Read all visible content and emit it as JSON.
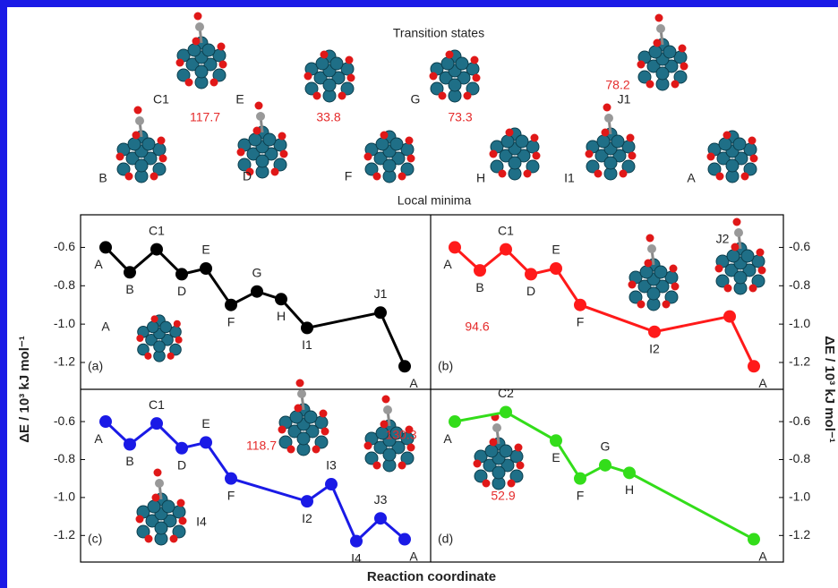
{
  "header": {
    "title": "Transition states",
    "subtitle": "Local minima",
    "transition_states": [
      {
        "label": "C1",
        "energy": "117.7"
      },
      {
        "label": "E",
        "energy": "33.8"
      },
      {
        "label": "G",
        "energy": "73.3"
      },
      {
        "label": "J1",
        "energy": "78.2"
      }
    ],
    "local_minima": [
      "B",
      "D",
      "F",
      "H",
      "I1",
      "A"
    ]
  },
  "figure": {
    "ylabel": "ΔE / 10³ kJ mol⁻¹",
    "xlabel": "Reaction coordinate"
  },
  "chart_data": [
    {
      "type": "line",
      "panel": "(a)",
      "color": "#000000",
      "categories": [
        "A",
        "B",
        "C1",
        "D",
        "E",
        "F",
        "G",
        "H",
        "I1",
        "J1",
        "A"
      ],
      "values": [
        -0.6,
        -0.73,
        -0.61,
        -0.74,
        -0.71,
        -0.9,
        -0.83,
        -0.87,
        -1.02,
        -0.94,
        -1.22
      ],
      "ylim": [
        -1.34,
        -0.43
      ],
      "yticks": [
        -0.6,
        -0.8,
        {
          "value": -1,
          "label": "-1.0"
        },
        -1.2
      ],
      "annotations": [
        "A"
      ]
    },
    {
      "type": "line",
      "panel": "(b)",
      "color": "#ff1a1a",
      "categories": [
        "A",
        "B",
        "C1",
        "D",
        "E",
        "F",
        "I2",
        null,
        "A"
      ],
      "values": [
        -0.6,
        -0.72,
        -0.61,
        -0.74,
        -0.71,
        -0.9,
        -1.04,
        -0.96,
        -1.22
      ],
      "ylim": [
        -1.34,
        -0.43
      ],
      "yticks": [
        -0.6,
        -0.8,
        {
          "value": -1,
          "label": "-1.0"
        },
        -1.2
      ],
      "annotations": [
        "J2",
        "94.6"
      ]
    },
    {
      "type": "line",
      "panel": "(c)",
      "color": "#1a1ae6",
      "categories": [
        "A",
        "B",
        "C1",
        "D",
        "E",
        "F",
        "I2",
        "I3",
        "I4",
        "J3",
        "A"
      ],
      "values": [
        -0.6,
        -0.72,
        -0.61,
        -0.74,
        -0.71,
        -0.9,
        -1.02,
        -0.93,
        -1.23,
        -1.11,
        -1.22
      ],
      "ylim": [
        -1.34,
        -0.43
      ],
      "yticks": [
        -0.6,
        -0.8,
        {
          "value": -1,
          "label": "-1.0"
        },
        -1.2
      ],
      "annotations": [
        "118.7",
        "130.3",
        "I4"
      ]
    },
    {
      "type": "line",
      "panel": "(d)",
      "color": "#33dd1a",
      "categories": [
        "A",
        "C2",
        "E",
        "F",
        "G",
        "H",
        "A"
      ],
      "values": [
        -0.6,
        -0.55,
        -0.7,
        -0.9,
        -0.83,
        -0.87,
        -1.22
      ],
      "ylim": [
        -1.34,
        -0.43
      ],
      "yticks": [
        -0.6,
        -0.8,
        {
          "value": -1,
          "label": "-1.0"
        },
        -1.2
      ],
      "annotations": [
        "52.9"
      ]
    }
  ]
}
